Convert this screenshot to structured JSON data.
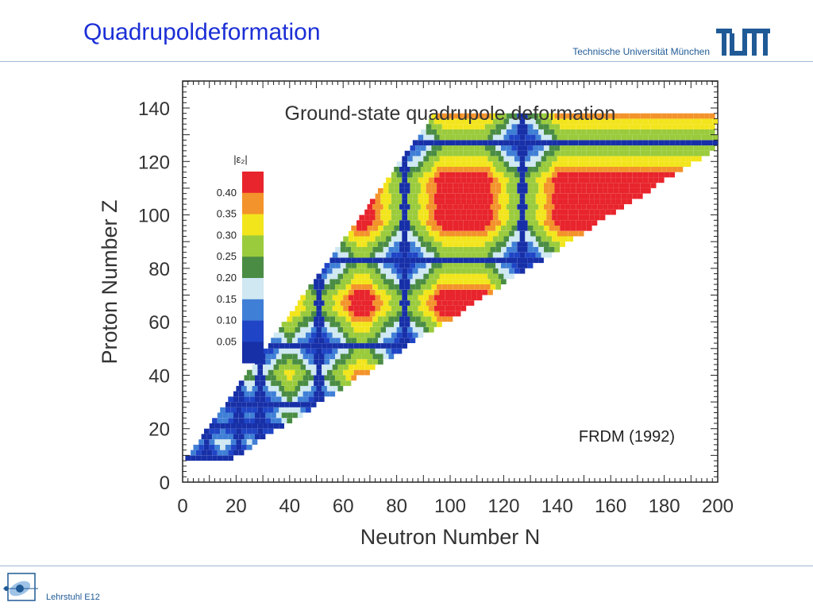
{
  "slide": {
    "title": "Quadrupoldeformation",
    "university": "Technische Universität München",
    "chair": "Lehrstuhl E12"
  },
  "colors": {
    "accent": "#1b2fd6",
    "brand": "#1f5a96"
  },
  "chart_data": {
    "type": "heatmap",
    "title": "Ground-state quadrupole deformation",
    "xlabel": "Neutron Number N",
    "ylabel": "Proton Number Z",
    "xlim": [
      0,
      200
    ],
    "ylim": [
      0,
      150
    ],
    "x_ticks": [
      0,
      20,
      40,
      60,
      80,
      100,
      120,
      140,
      160,
      180,
      200
    ],
    "y_ticks": [
      0,
      20,
      40,
      60,
      80,
      100,
      120,
      140
    ],
    "annotation": "FRDM (1992)",
    "legend": {
      "title": "|ε₂|",
      "position": "top-left",
      "levels": [
        {
          "label": "0.40",
          "color": "#e8242c"
        },
        {
          "label": "0.35",
          "color": "#f3932b"
        },
        {
          "label": "0.30",
          "color": "#f2e51c"
        },
        {
          "label": "0.25",
          "color": "#9acb3c"
        },
        {
          "label": "0.20",
          "color": "#4a8c44"
        },
        {
          "label": "0.15",
          "color": "#cfe8f2"
        },
        {
          "label": "0.10",
          "color": "#3f7fd6"
        },
        {
          "label": "0.05",
          "color": "#1f45c6"
        },
        {
          "label": "",
          "color": "#1730a8"
        }
      ]
    },
    "magic_numbers": [
      8,
      20,
      28,
      50,
      82,
      126
    ]
  }
}
